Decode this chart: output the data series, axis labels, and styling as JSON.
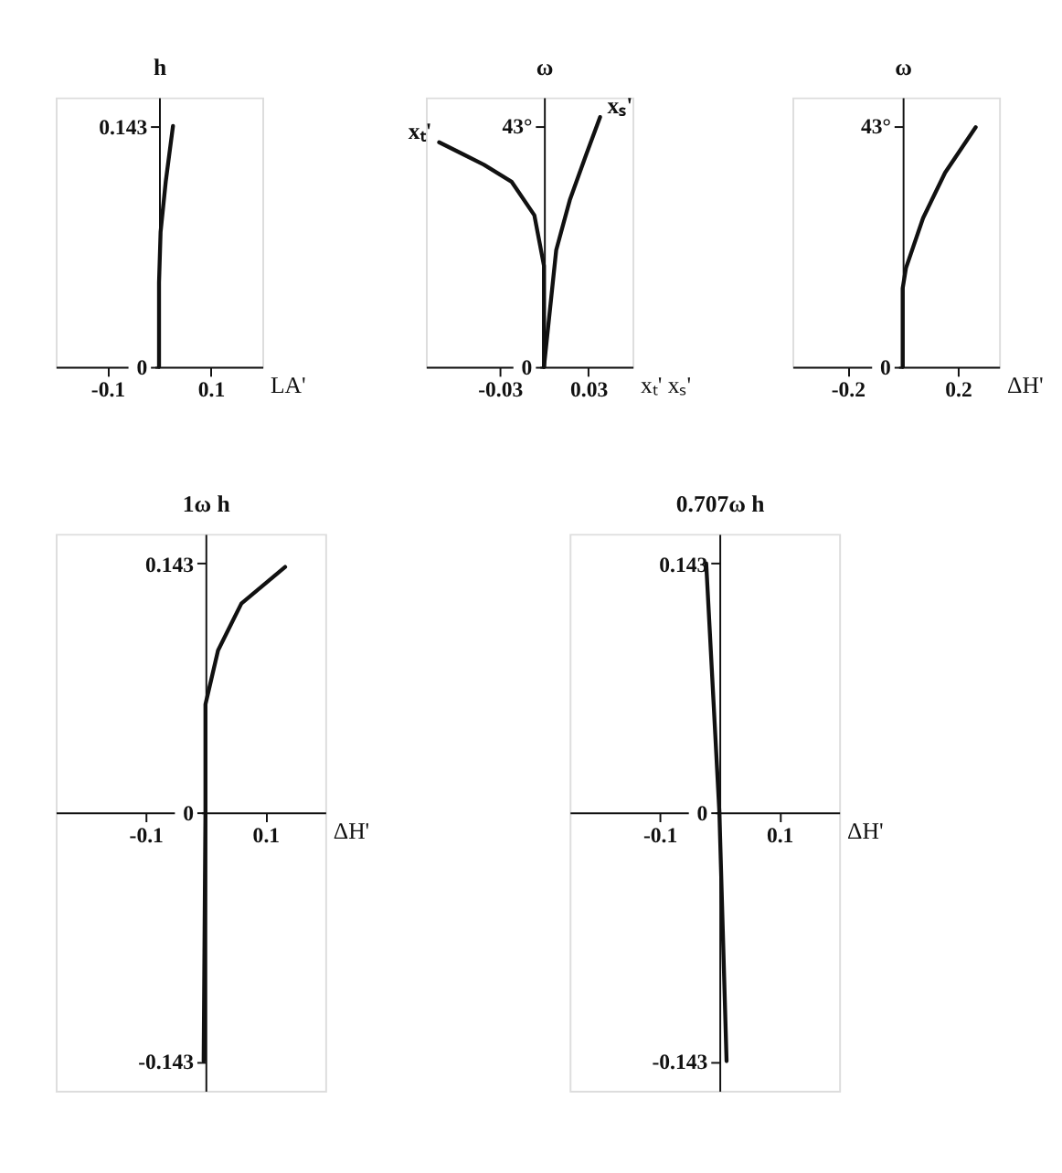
{
  "chart_data": [
    {
      "type": "line",
      "xlabel": "LA'",
      "ylabel": "h",
      "xlim": [
        -0.2,
        0.2
      ],
      "ylim": [
        0,
        0.16
      ],
      "xticks": [
        -0.1,
        0.1
      ],
      "yticks": [
        0,
        0.143
      ],
      "grid": false,
      "series": [
        {
          "color": "#111111",
          "x": [
            0,
            0,
            0.003,
            0.013,
            0.027
          ],
          "values": [
            0,
            0.05,
            0.08,
            0.11,
            0.143
          ]
        }
      ]
    },
    {
      "type": "line",
      "xlabel": "xₜ' xₛ'",
      "ylabel": "ω",
      "xlim": [
        -0.08,
        0.06
      ],
      "ylim": [
        0,
        48
      ],
      "xticks": [
        -0.03,
        0.03
      ],
      "yticks": [
        0,
        {
          "value": 43,
          "label": "43°"
        }
      ],
      "grid": false,
      "series": [
        {
          "name": "xₛ'",
          "color": "#111111",
          "x": [
            0,
            0.0083,
            0.0175,
            0.0286,
            0.038
          ],
          "values": [
            0,
            20.8,
            29.7,
            37.8,
            44.5
          ]
        },
        {
          "name": "xₜ'",
          "color": "#111111",
          "x": [
            0,
            0,
            -0.0065,
            -0.022,
            -0.0406,
            -0.071
          ],
          "values": [
            0,
            18,
            27,
            33,
            36,
            40
          ]
        }
      ]
    },
    {
      "type": "line",
      "xlabel": "ΔH'",
      "ylabel": "ω",
      "xlim": [
        -0.4,
        0.35
      ],
      "ylim": [
        0,
        48
      ],
      "xticks": [
        -0.2,
        0.2
      ],
      "yticks": [
        0,
        {
          "value": 43,
          "label": "43°"
        }
      ],
      "grid": false,
      "series": [
        {
          "color": "#111111",
          "x": [
            0,
            0,
            0.012,
            0.074,
            0.154,
            0.265
          ],
          "values": [
            0,
            14,
            17.6,
            26.5,
            34.6,
            42.7
          ]
        }
      ]
    },
    {
      "type": "line",
      "xlabel": "ΔH'",
      "ylabel": "1ω h",
      "xlim": [
        -0.25,
        0.2
      ],
      "ylim": [
        -0.16,
        0.16
      ],
      "xticks": [
        -0.1,
        0.1
      ],
      "yticks": [
        0.143,
        0,
        -0.143
      ],
      "grid": false,
      "series": [
        {
          "color": "#111111",
          "x": [
            -0.003,
            0,
            0,
            0.021,
            0.06,
            0.133
          ],
          "values": [
            -0.143,
            0,
            0.062,
            0.093,
            0.12,
            0.141
          ]
        }
      ]
    },
    {
      "type": "line",
      "xlabel": "ΔH'",
      "ylabel": "0.707ω h",
      "xlim": [
        -0.25,
        0.2
      ],
      "ylim": [
        -0.16,
        0.16
      ],
      "xticks": [
        -0.1,
        0.1
      ],
      "yticks": [
        0.143,
        0,
        -0.143
      ],
      "grid": false,
      "series": [
        {
          "color": "#111111",
          "x": [
            -0.022,
            0,
            0.012
          ],
          "values": [
            0.143,
            0,
            -0.143
          ]
        }
      ]
    }
  ]
}
